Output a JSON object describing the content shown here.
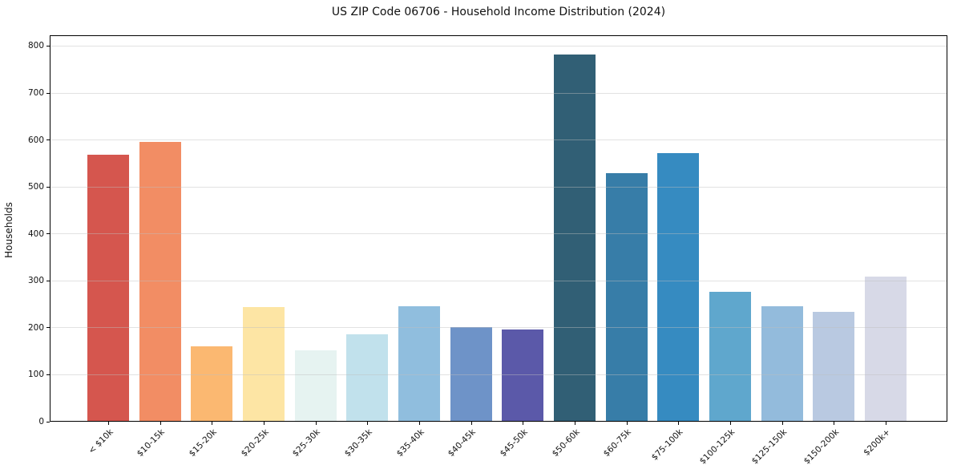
{
  "chart_data": {
    "type": "bar",
    "title": "US ZIP Code 06706 - Household Income Distribution (2024)",
    "xlabel": "",
    "ylabel": "Households",
    "categories": [
      "< $10k",
      "$10-15k",
      "$15-20k",
      "$20-25k",
      "$25-30k",
      "$30-35k",
      "$35-40k",
      "$40-45k",
      "$45-50k",
      "$50-60k",
      "$60-75k",
      "$75-100k",
      "$100-125k",
      "$125-150k",
      "$150-200k",
      "$200k+"
    ],
    "values": [
      568,
      596,
      160,
      244,
      152,
      186,
      246,
      202,
      197,
      782,
      530,
      572,
      276,
      246,
      234,
      309
    ],
    "bar_colors": [
      "#d5564e",
      "#f28d64",
      "#fbb871",
      "#fde5a4",
      "#e6f3f1",
      "#c1e1ec",
      "#90bede",
      "#6e93c8",
      "#5b59a9",
      "#315f75",
      "#377da8",
      "#368bc1",
      "#5fa7cd",
      "#93bbdc",
      "#b9c9e1",
      "#d7d9e7"
    ],
    "yticks": [
      0,
      100,
      200,
      300,
      400,
      500,
      600,
      700,
      800
    ],
    "ylim": [
      0,
      823
    ],
    "grid": true,
    "legend": "none",
    "grid_color": "#e8e8e8",
    "axis_color": "#000000",
    "background_color": "#ffffff"
  }
}
